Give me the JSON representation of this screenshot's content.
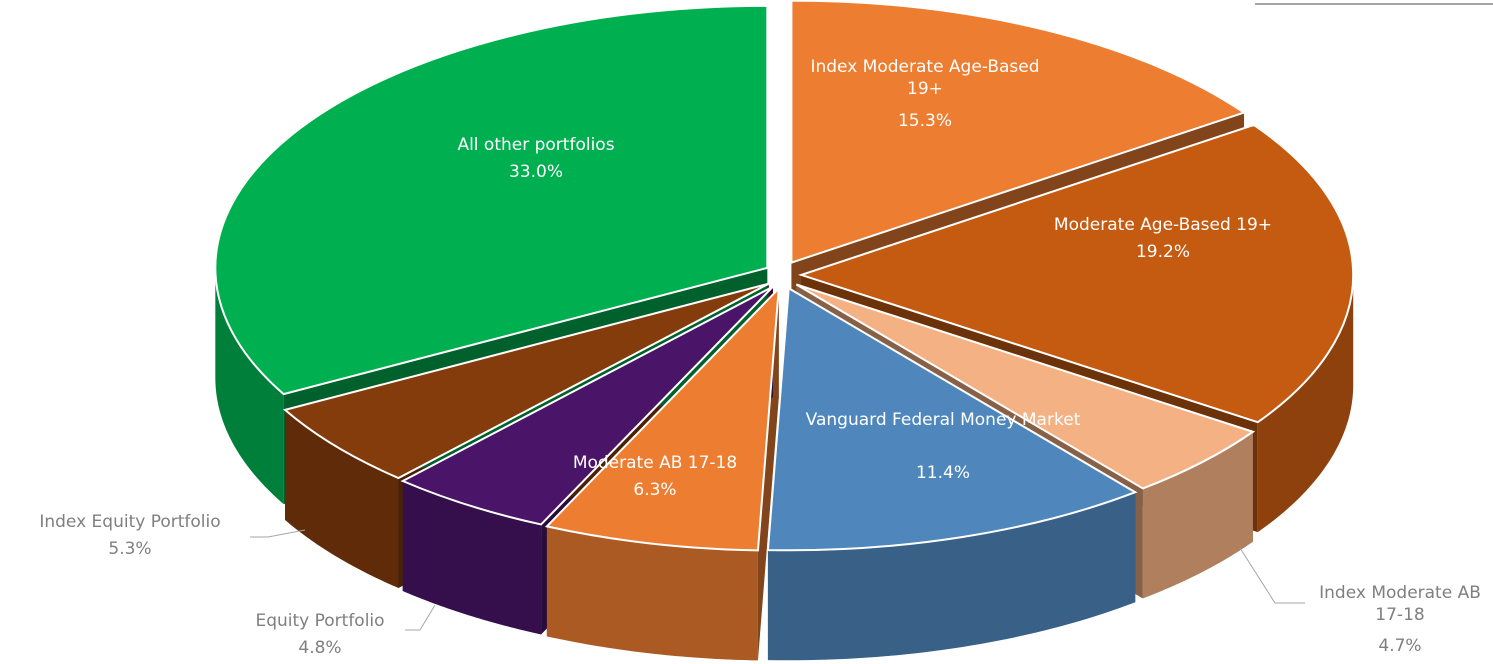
{
  "chart_data": {
    "type": "pie3d",
    "categories": [
      "Index Moderate Age-Based 19+",
      "Moderate Age-Based 19+",
      "Index Moderate AB 17-18",
      "Vanguard Federal Money Market",
      "Moderate AB 17-18",
      "Equity Portfolio",
      "Index Equity Portfolio",
      "All other portfolios"
    ],
    "values": [
      15.3,
      19.2,
      4.7,
      11.4,
      6.3,
      4.8,
      5.3,
      33.0
    ],
    "value_labels": [
      "15.3%",
      "19.2%",
      "4.7%",
      "11.4%",
      "6.3%",
      "4.8%",
      "5.3%",
      "33.0%"
    ],
    "colors": [
      "#ED7D31",
      "#C55A11",
      "#F4B183",
      "#4F87BD",
      "#ED7D31",
      "#4A1568",
      "#843C0C",
      "#00B050"
    ]
  }
}
